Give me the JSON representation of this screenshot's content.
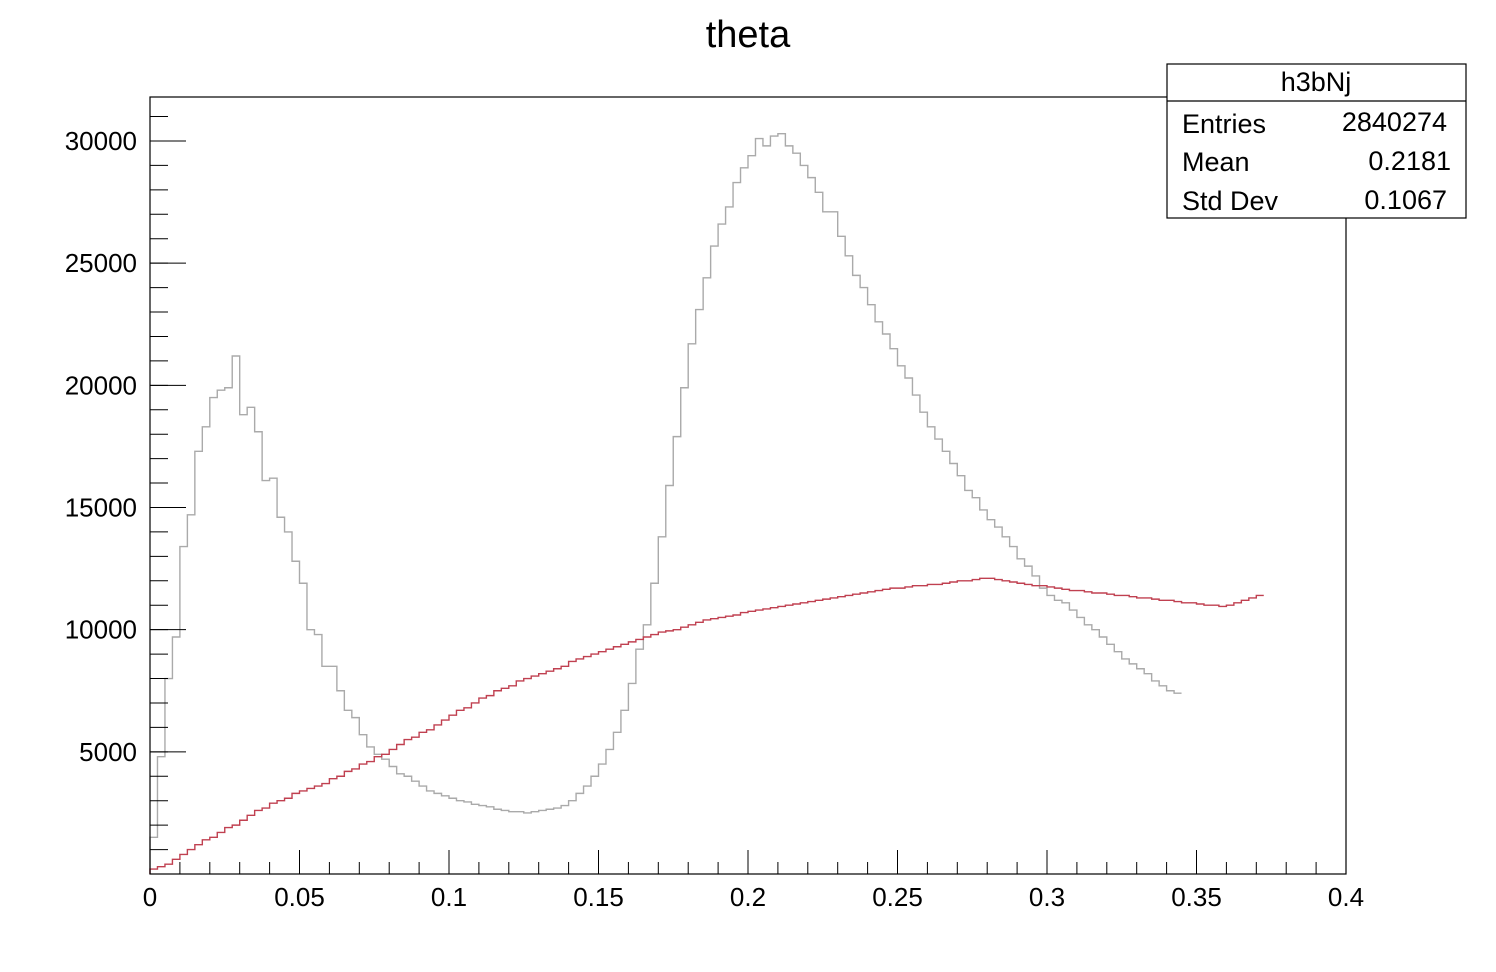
{
  "chart_data": {
    "type": "histogram",
    "title": "theta",
    "xlabel": "",
    "ylabel": "",
    "xlim": [
      0,
      0.4
    ],
    "ylim": [
      0,
      31800
    ],
    "x_ticks": [
      0,
      0.05,
      0.1,
      0.15,
      0.2,
      0.25,
      0.3,
      0.35,
      0.4
    ],
    "x_tick_labels": [
      "0",
      "0.05",
      "0.1",
      "0.15",
      "0.2",
      "0.25",
      "0.3",
      "0.35",
      "0.4"
    ],
    "y_ticks": [
      5000,
      10000,
      15000,
      20000,
      25000,
      30000
    ],
    "y_tick_labels": [
      "5000",
      "10000",
      "15000",
      "20000",
      "25000",
      "30000"
    ],
    "grid": false,
    "bin_width": 0.0025,
    "series": [
      {
        "color": "#aaaaaa",
        "values": [
          1500,
          4800,
          8000,
          9700,
          13400,
          14700,
          17300,
          18300,
          19500,
          19800,
          19900,
          21200,
          18800,
          19100,
          18100,
          16100,
          16200,
          14600,
          14000,
          12800,
          11900,
          10000,
          9800,
          8500,
          8500,
          7500,
          6700,
          6400,
          5700,
          5200,
          4900,
          4700,
          4400,
          4100,
          4000,
          3800,
          3600,
          3400,
          3300,
          3200,
          3100,
          3000,
          2950,
          2850,
          2800,
          2750,
          2650,
          2600,
          2550,
          2550,
          2500,
          2550,
          2600,
          2650,
          2700,
          2800,
          3000,
          3300,
          3600,
          4000,
          4500,
          5100,
          5800,
          6700,
          7800,
          9200,
          10200,
          11900,
          13800,
          15900,
          17900,
          19900,
          21700,
          23100,
          24400,
          25700,
          26600,
          27300,
          28300,
          28900,
          29400,
          30100,
          29800,
          30200,
          30300,
          29800,
          29500,
          29000,
          28500,
          27900,
          27100,
          27100,
          26100,
          25300,
          24500,
          24000,
          23300,
          22600,
          22100,
          21500,
          20800,
          20300,
          19600,
          18900,
          18300,
          17800,
          17300,
          16800,
          16300,
          15700,
          15400,
          14900,
          14500,
          14200,
          13800,
          13400,
          12900,
          12600,
          12200,
          11700,
          11400,
          11200,
          11100,
          10800,
          10500,
          10200,
          10000,
          9700,
          9400,
          9100,
          8800,
          8600,
          8400,
          8200,
          7900,
          7700,
          7500,
          7400
        ]
      },
      {
        "color": "#c04050",
        "values": [
          200,
          300,
          400,
          600,
          800,
          1000,
          1200,
          1400,
          1500,
          1700,
          1900,
          2000,
          2200,
          2400,
          2600,
          2700,
          2900,
          3000,
          3100,
          3300,
          3400,
          3500,
          3600,
          3700,
          3900,
          4000,
          4200,
          4300,
          4500,
          4600,
          4800,
          4900,
          5100,
          5300,
          5500,
          5600,
          5800,
          5900,
          6100,
          6300,
          6500,
          6700,
          6800,
          7000,
          7200,
          7300,
          7500,
          7600,
          7700,
          7900,
          8000,
          8100,
          8200,
          8300,
          8400,
          8500,
          8700,
          8800,
          8900,
          9000,
          9100,
          9200,
          9300,
          9400,
          9500,
          9600,
          9700,
          9800,
          9900,
          9950,
          10000,
          10100,
          10200,
          10300,
          10400,
          10450,
          10500,
          10550,
          10600,
          10700,
          10750,
          10800,
          10850,
          10900,
          10950,
          11000,
          11050,
          11100,
          11150,
          11200,
          11250,
          11300,
          11350,
          11400,
          11450,
          11500,
          11550,
          11600,
          11650,
          11700,
          11700,
          11750,
          11800,
          11800,
          11850,
          11850,
          11900,
          11950,
          12000,
          12000,
          12050,
          12100,
          12100,
          12050,
          12000,
          11950,
          11900,
          11850,
          11800,
          11800,
          11750,
          11700,
          11650,
          11600,
          11600,
          11550,
          11500,
          11500,
          11450,
          11400,
          11400,
          11350,
          11300,
          11300,
          11250,
          11200,
          11200,
          11150,
          11100,
          11100,
          11050,
          11000,
          11000,
          10950,
          11000,
          11100,
          11200,
          11300,
          11400
        ]
      }
    ]
  },
  "stats_box": {
    "name": "h3bNj",
    "rows": [
      {
        "label": "Entries",
        "value": "2840274"
      },
      {
        "label": "Mean",
        "value": "0.2181"
      },
      {
        "label": "Std Dev",
        "value": "0.1067"
      }
    ]
  }
}
